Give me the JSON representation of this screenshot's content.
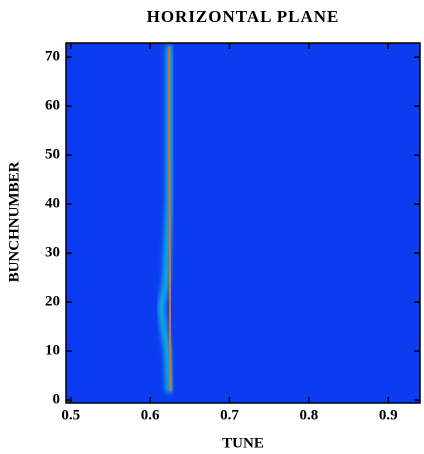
{
  "chart_data": {
    "type": "heatmap",
    "title": "HORIZONTAL PLANE",
    "x_label": "TUNE",
    "y_label": "BUNCHNUMBER",
    "xlim": [
      0.494,
      0.94
    ],
    "ylim": [
      -0.6,
      72.9
    ],
    "xticks": [
      0.5,
      0.6,
      0.7,
      0.8,
      0.9
    ],
    "yticks": [
      0,
      10,
      20,
      30,
      40,
      50,
      60,
      70
    ],
    "background_color": "#0b3cf2",
    "halo": {
      "x": [
        0.624,
        0.622,
        0.617,
        0.614,
        0.62,
        0.624,
        0.624
      ],
      "y": [
        2,
        10,
        15,
        19,
        24,
        40,
        72
      ],
      "color": "#18c8d8"
    },
    "peak": {
      "x": [
        0.626,
        0.625,
        0.625,
        0.624,
        0.624
      ],
      "y": [
        2,
        15,
        30,
        50,
        72
      ],
      "color": "#e0701c"
    }
  }
}
